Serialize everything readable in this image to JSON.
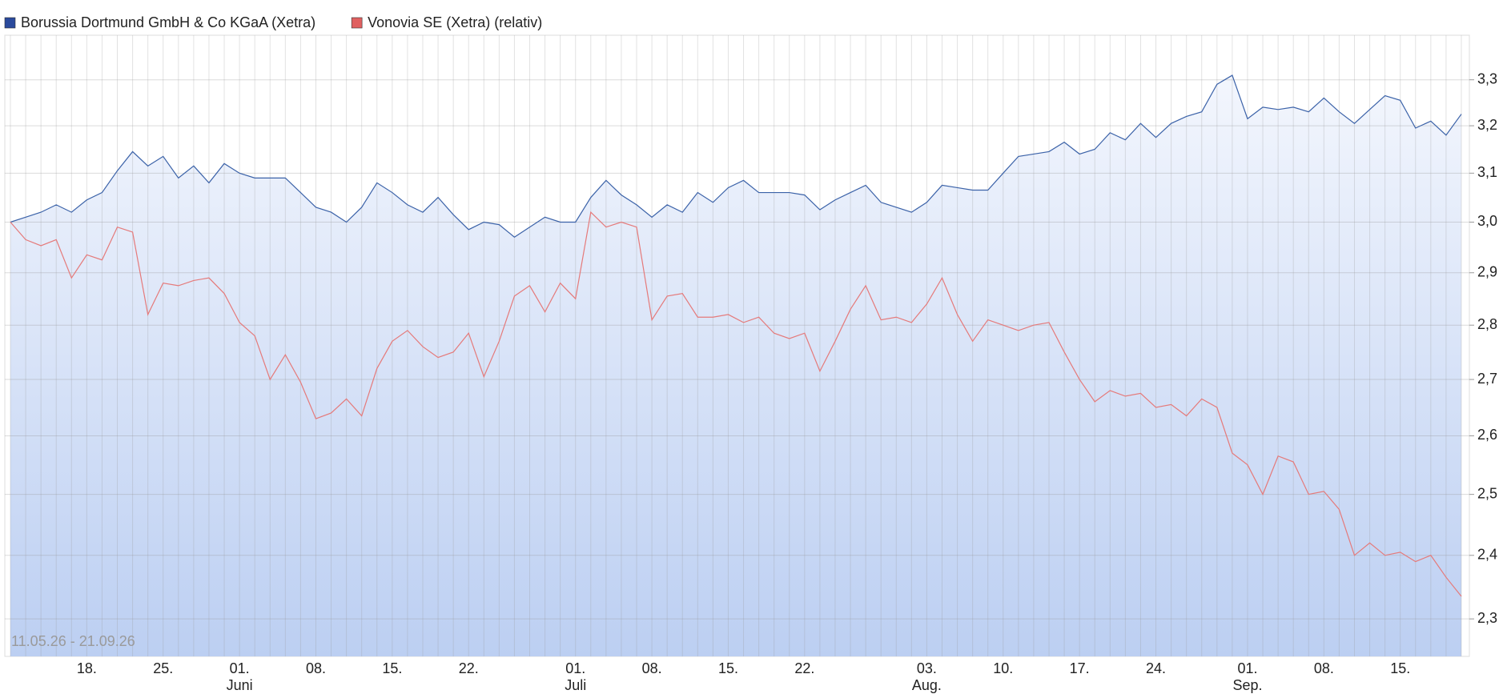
{
  "chart_data": {
    "type": "line",
    "log_scale": true,
    "grid": true,
    "legend_position": "top-left",
    "annotation": "11.05.26 - 21.09.26",
    "categories": [
      null,
      null,
      null,
      null,
      null,
      "18.",
      null,
      null,
      null,
      null,
      "25.",
      null,
      null,
      null,
      null,
      "01.",
      null,
      null,
      null,
      null,
      "08.",
      null,
      null,
      null,
      null,
      "15.",
      null,
      null,
      null,
      null,
      "22.",
      null,
      null,
      null,
      null,
      null,
      null,
      "01.",
      null,
      null,
      null,
      null,
      "08.",
      null,
      null,
      null,
      null,
      "15.",
      null,
      null,
      null,
      null,
      "22.",
      null,
      null,
      null,
      null,
      null,
      null,
      null,
      "03.",
      null,
      null,
      null,
      null,
      "10.",
      null,
      null,
      null,
      null,
      "17.",
      null,
      null,
      null,
      null,
      "24.",
      null,
      null,
      null,
      null,
      null,
      "01.",
      null,
      null,
      null,
      null,
      "08.",
      null,
      null,
      null,
      null,
      "15.",
      null,
      null,
      null,
      null
    ],
    "months": [
      null,
      null,
      null,
      null,
      null,
      null,
      null,
      null,
      null,
      null,
      null,
      null,
      null,
      null,
      null,
      "Juni",
      null,
      null,
      null,
      null,
      null,
      null,
      null,
      null,
      null,
      null,
      null,
      null,
      null,
      null,
      null,
      null,
      null,
      null,
      null,
      null,
      null,
      "Juli",
      null,
      null,
      null,
      null,
      null,
      null,
      null,
      null,
      null,
      null,
      null,
      null,
      null,
      null,
      null,
      null,
      null,
      null,
      null,
      null,
      null,
      null,
      "Aug.",
      null,
      null,
      null,
      null,
      null,
      null,
      null,
      null,
      null,
      null,
      null,
      null,
      null,
      null,
      null,
      null,
      null,
      null,
      null,
      null,
      "Sep.",
      null,
      null,
      null,
      null,
      null,
      null,
      null,
      null,
      null,
      null,
      null,
      null,
      null,
      null
    ],
    "series": [
      {
        "name": "Borussia Dortmund GmbH & Co KGaA (Xetra)",
        "color": "#3b62a8",
        "legend_color": "#2a4a9c",
        "area_fill": true,
        "values": [
          3.0,
          3.01,
          3.02,
          3.035,
          3.02,
          3.045,
          3.06,
          3.105,
          3.145,
          3.115,
          3.135,
          3.09,
          3.115,
          3.08,
          3.12,
          3.1,
          3.09,
          3.09,
          3.09,
          3.06,
          3.03,
          3.02,
          3.0,
          3.03,
          3.08,
          3.06,
          3.035,
          3.02,
          3.05,
          3.015,
          2.985,
          3.0,
          2.995,
          2.97,
          2.99,
          3.01,
          3.0,
          3.0,
          3.05,
          3.085,
          3.055,
          3.035,
          3.01,
          3.035,
          3.02,
          3.06,
          3.04,
          3.07,
          3.085,
          3.06,
          3.06,
          3.06,
          3.055,
          3.025,
          3.045,
          3.06,
          3.075,
          3.04,
          3.03,
          3.02,
          3.04,
          3.075,
          3.07,
          3.065,
          3.065,
          3.1,
          3.135,
          3.14,
          3.145,
          3.165,
          3.14,
          3.15,
          3.185,
          3.17,
          3.205,
          3.175,
          3.205,
          3.22,
          3.23,
          3.29,
          3.31,
          3.215,
          3.24,
          3.235,
          3.24,
          3.23,
          3.26,
          3.23,
          3.205,
          3.235,
          3.265,
          3.255,
          3.195,
          3.21,
          3.18,
          3.225
        ]
      },
      {
        "name": "Vonovia SE (Xetra) (relativ)",
        "color": "#e57a7a",
        "legend_color": "#e06060",
        "area_fill": false,
        "values": [
          3.0,
          2.965,
          2.953,
          2.965,
          2.89,
          2.935,
          2.925,
          2.99,
          2.98,
          2.82,
          2.88,
          2.875,
          2.885,
          2.89,
          2.86,
          2.805,
          2.78,
          2.7,
          2.745,
          2.695,
          2.63,
          2.64,
          2.665,
          2.635,
          2.72,
          2.77,
          2.79,
          2.76,
          2.74,
          2.75,
          2.785,
          2.705,
          2.77,
          2.855,
          2.875,
          2.825,
          2.88,
          2.85,
          3.02,
          2.99,
          3.0,
          2.99,
          2.81,
          2.855,
          2.86,
          2.815,
          2.815,
          2.82,
          2.805,
          2.815,
          2.785,
          2.775,
          2.785,
          2.715,
          2.77,
          2.83,
          2.875,
          2.81,
          2.815,
          2.805,
          2.84,
          2.89,
          2.82,
          2.77,
          2.81,
          2.8,
          2.79,
          2.8,
          2.805,
          2.75,
          2.7,
          2.66,
          2.68,
          2.67,
          2.675,
          2.65,
          2.655,
          2.635,
          2.665,
          2.65,
          2.57,
          2.55,
          2.5,
          2.565,
          2.555,
          2.5,
          2.505,
          2.475,
          2.4,
          2.42,
          2.4,
          2.405,
          2.39,
          2.4,
          2.365,
          2.335
        ]
      }
    ],
    "ylim": [
      2.243,
      3.4
    ],
    "yticks": [
      {
        "value": 2.3,
        "label": "2,3"
      },
      {
        "value": 2.4,
        "label": "2,4"
      },
      {
        "value": 2.5,
        "label": "2,5"
      },
      {
        "value": 2.6,
        "label": "2,6"
      },
      {
        "value": 2.7,
        "label": "2,7"
      },
      {
        "value": 2.8,
        "label": "2,8"
      },
      {
        "value": 2.9,
        "label": "2,9"
      },
      {
        "value": 3.0,
        "label": "3,0"
      },
      {
        "value": 3.1,
        "label": "3,1"
      },
      {
        "value": 3.2,
        "label": "3,2"
      },
      {
        "value": 3.3,
        "label": "3,3"
      }
    ]
  }
}
